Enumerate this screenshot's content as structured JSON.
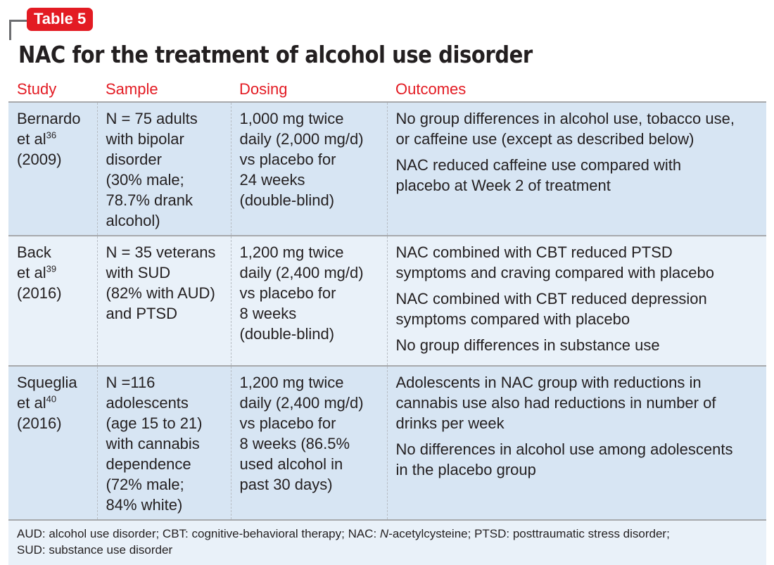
{
  "label": "Table 5",
  "title": "NAC for the treatment of alcohol use disorder",
  "columns": [
    "Study",
    "Sample",
    "Dosing",
    "Outcomes"
  ],
  "rows": [
    {
      "study": "Bernardo",
      "study_sup_prefix": "et al",
      "ref": "36",
      "year": "(2009)",
      "sample": [
        "N = 75 adults",
        "with bipolar",
        "disorder",
        "(30% male;",
        "78.7% drank",
        "alcohol)"
      ],
      "dosing": [
        "1,000 mg twice",
        "daily (2,000 mg/d)",
        "vs placebo for",
        "24 weeks",
        "(double-blind)"
      ],
      "outcomes": [
        [
          "No group differences in alcohol use, tobacco use,",
          "or caffeine use (except as described below)"
        ],
        [
          "NAC reduced caffeine use compared with",
          "placebo at Week 2 of treatment"
        ]
      ]
    },
    {
      "study": "Back",
      "study_sup_prefix": "et al",
      "ref": "39",
      "year": "(2016)",
      "sample": [
        "N = 35 veterans",
        "with SUD",
        "(82% with AUD)",
        "and PTSD"
      ],
      "dosing": [
        "1,200 mg twice",
        "daily (2,400 mg/d)",
        "vs placebo for",
        "8 weeks",
        "(double-blind)"
      ],
      "outcomes": [
        [
          "NAC combined with CBT reduced PTSD",
          "symptoms and craving compared with placebo"
        ],
        [
          "NAC combined with CBT reduced depression",
          "symptoms compared with placebo"
        ],
        [
          "No group differences in substance use"
        ]
      ]
    },
    {
      "study": "Squeglia",
      "study_sup_prefix": "et al",
      "ref": "40",
      "year": "(2016)",
      "sample": [
        "N =116",
        "adolescents",
        "(age 15 to 21)",
        "with cannabis",
        "dependence",
        "(72% male;",
        "84% white)"
      ],
      "dosing": [
        "1,200 mg twice",
        "daily (2,400 mg/d)",
        "vs placebo for",
        "8 weeks (86.5%",
        "used alcohol in",
        "past 30 days)"
      ],
      "outcomes": [
        [
          "Adolescents in NAC group with reductions in",
          "cannabis use also had reductions in number of",
          "drinks per week"
        ],
        [
          "No differences in alcohol use among adolescents",
          "in the placebo group"
        ]
      ]
    }
  ],
  "footnote": {
    "line1_a": "AUD: alcohol use disorder; CBT: cognitive-behavioral therapy; NAC: ",
    "line1_italic": "N",
    "line1_b": "-acetylcysteine; PTSD: posttraumatic stress disorder;",
    "line2": "SUD: substance use disorder"
  },
  "colors": {
    "accent": "#e31b23",
    "row_dark": "#d7e5f3",
    "row_light": "#e9f1f9"
  }
}
